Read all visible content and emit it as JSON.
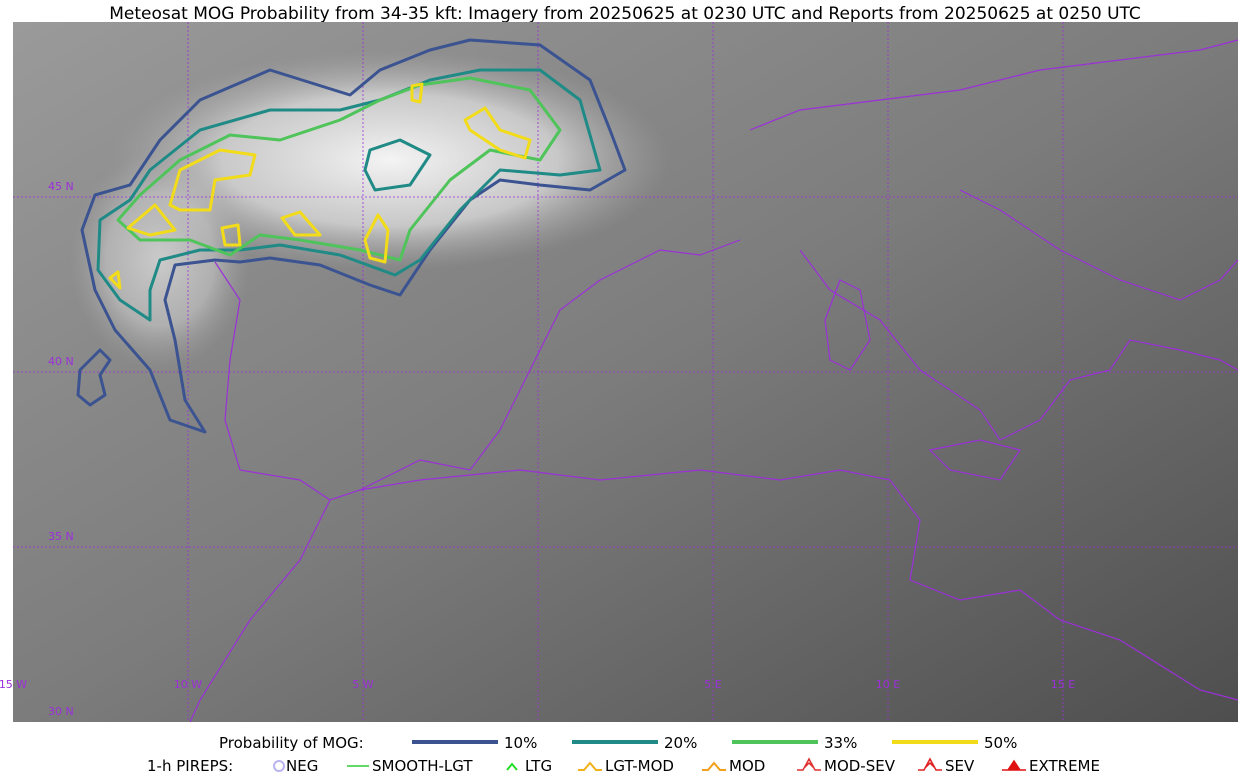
{
  "title": "Meteosat MOG Probability from 34-35 kft: Imagery from 20250625 at 0230 UTC and Reports from 20250625 at 0250 UTC",
  "map": {
    "lat_labels": [
      "45 N",
      "40 N",
      "35 N",
      "30 N"
    ],
    "lon_labels": [
      "15 W",
      "10 W",
      "5 W",
      "5 E",
      "10 E",
      "15 E"
    ]
  },
  "legend": {
    "mog": {
      "title": "Probability of MOG:",
      "items": [
        {
          "label": "10%",
          "color": "#3b5391"
        },
        {
          "label": "20%",
          "color": "#1f8a86"
        },
        {
          "label": "33%",
          "color": "#4fc45a"
        },
        {
          "label": "50%",
          "color": "#f2dc1a"
        }
      ]
    },
    "pireps": {
      "title": "1-h PIREPS:",
      "items": [
        {
          "label": "NEG",
          "color": "#b9b3f0"
        },
        {
          "label": "SMOOTH-LGT",
          "color": "#33cc33"
        },
        {
          "label": "LTG",
          "color": "#22dd22"
        },
        {
          "label": "LGT-MOD",
          "color": "#f2b01a"
        },
        {
          "label": "MOD",
          "color": "#f2a01a"
        },
        {
          "label": "MOD-SEV",
          "color": "#e03030"
        },
        {
          "label": "SEV",
          "color": "#e02020"
        },
        {
          "label": "EXTREME",
          "color": "#e01010"
        }
      ]
    }
  }
}
